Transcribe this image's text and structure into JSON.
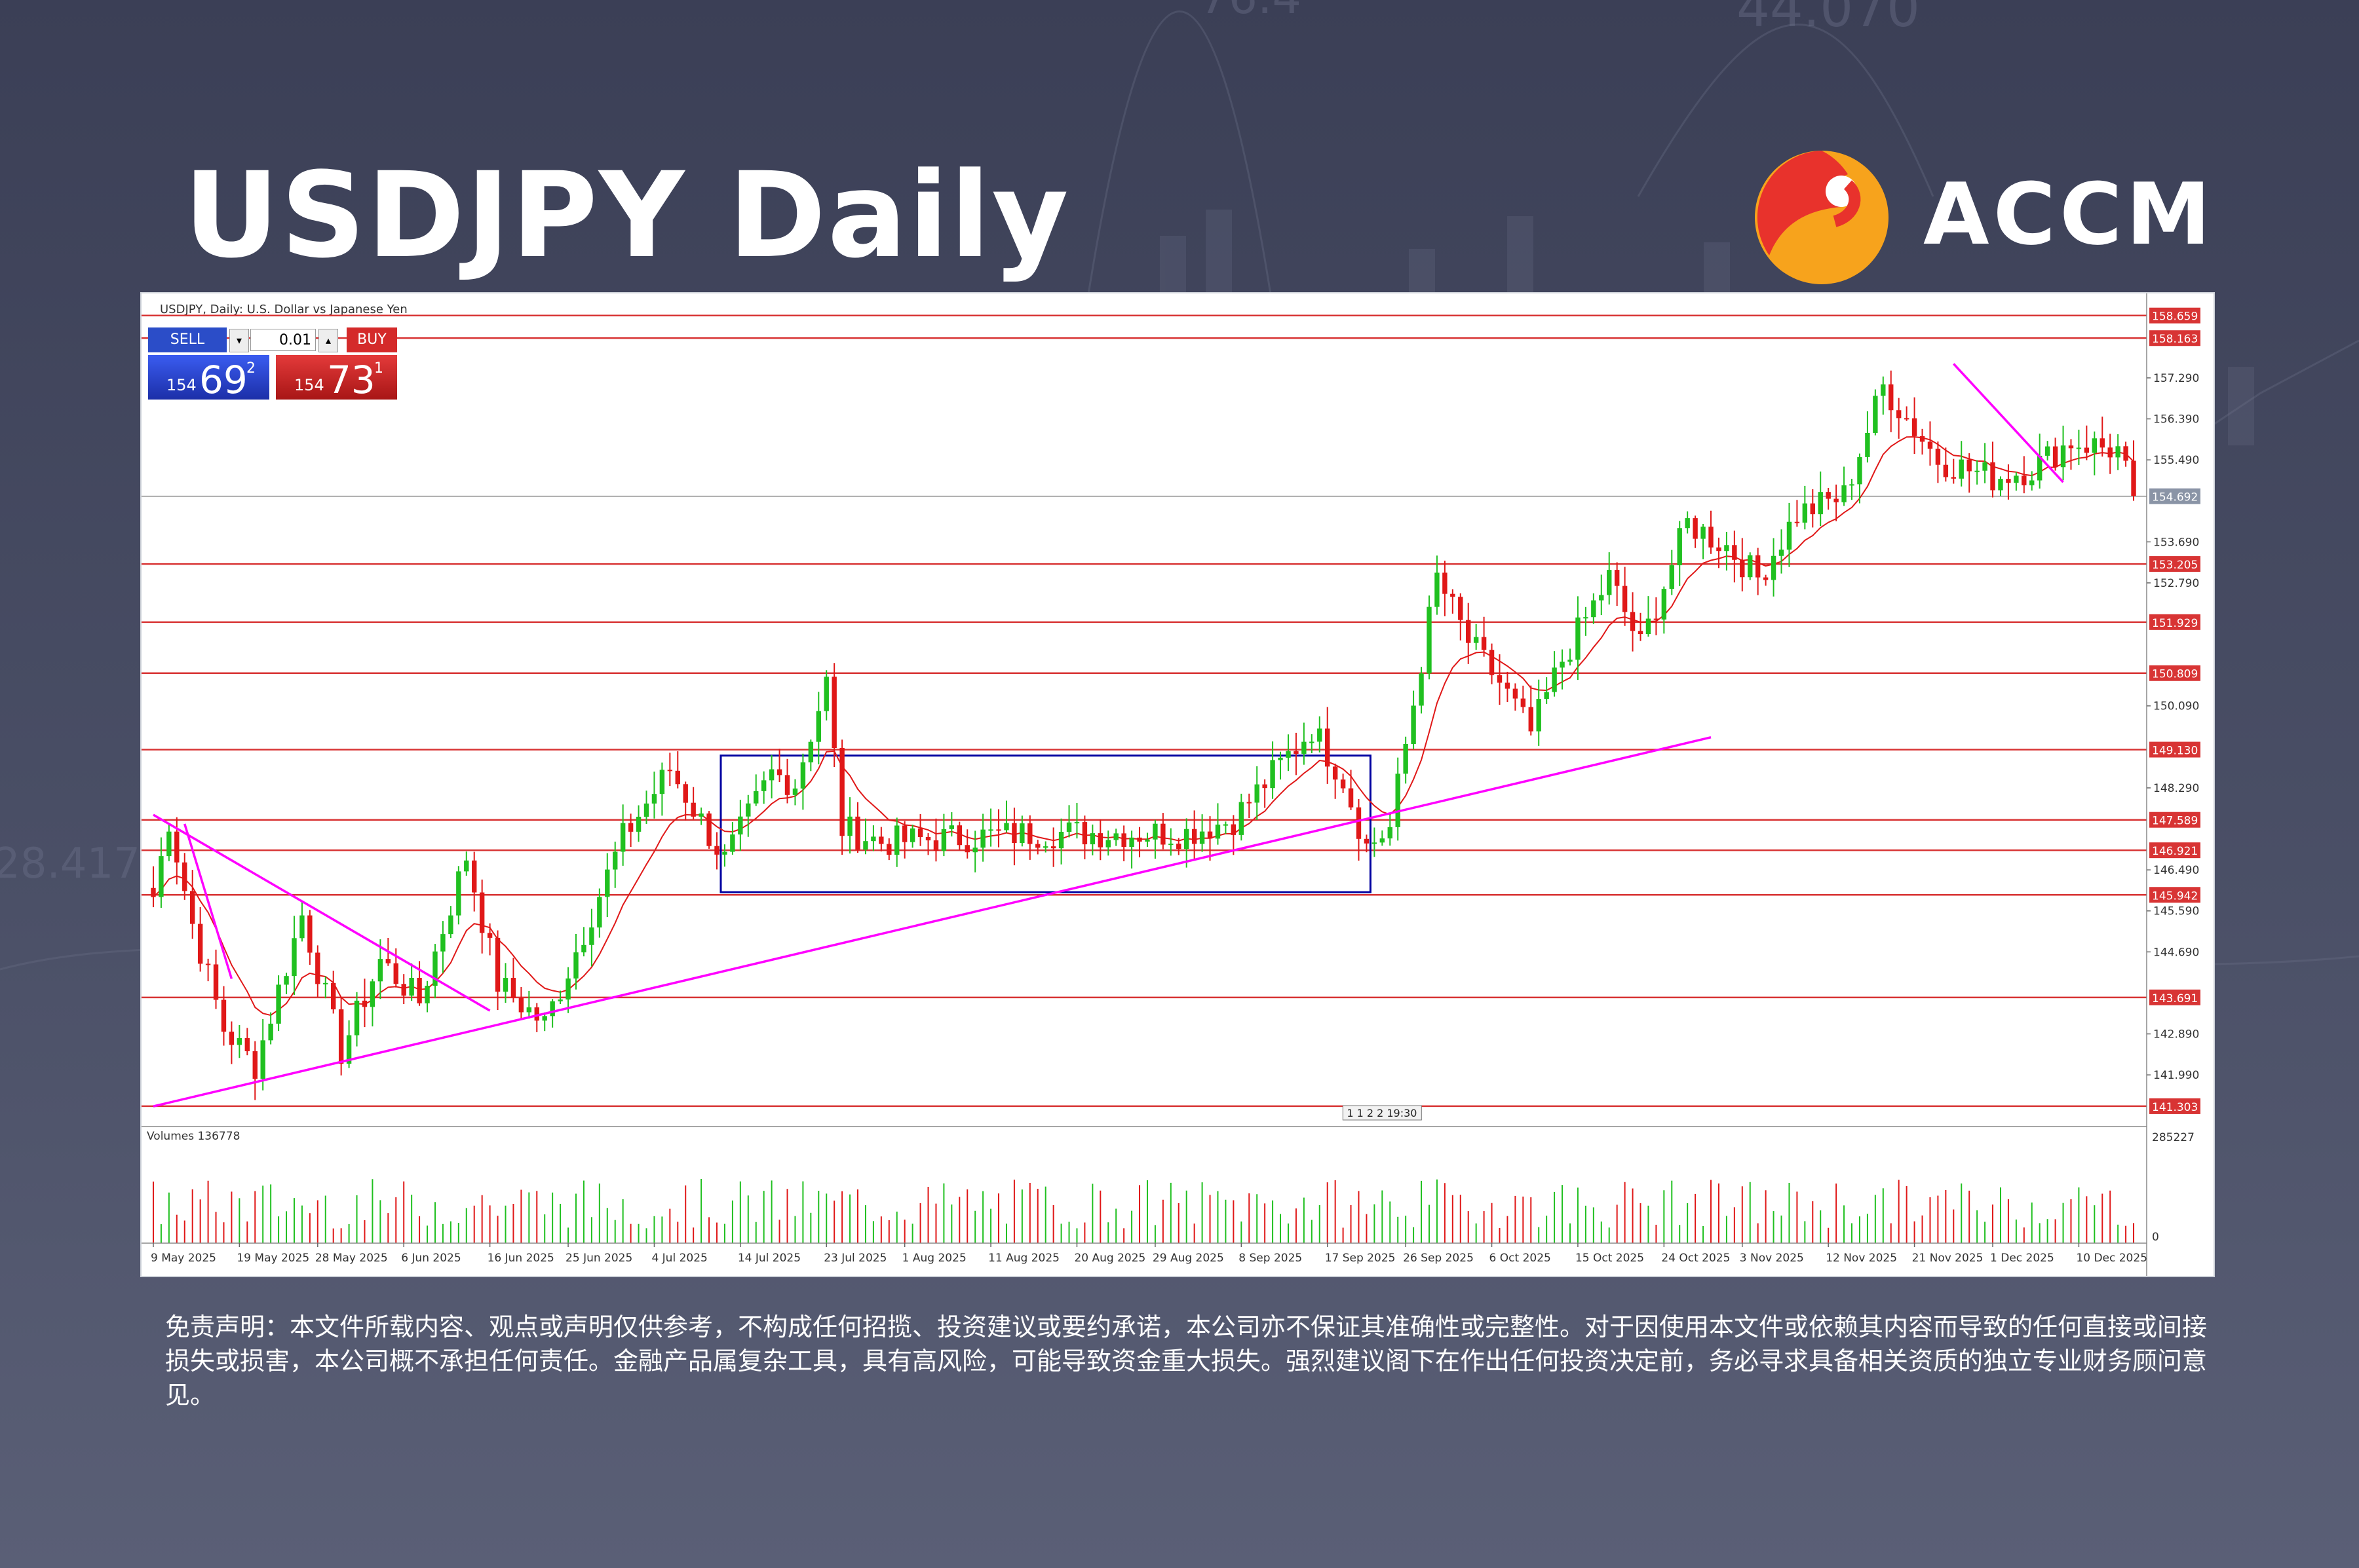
{
  "title": "USDJPY Daily",
  "brand": {
    "name": "ACCM",
    "logo_colors": [
      "#e8322c",
      "#f7a31c"
    ]
  },
  "background_numbers": [
    "76.4",
    "44.070",
    "28.417"
  ],
  "trade_panel": {
    "sell_label": "SELL",
    "buy_label": "BUY",
    "lot": "0.01",
    "sell_small": "154",
    "sell_big": "69",
    "sell_sup": "2",
    "buy_small": "154",
    "buy_big": "73",
    "buy_sup": "1"
  },
  "chart_data": {
    "type": "candlestick",
    "header": "USDJPY, Daily: U.S. Dollar vs Japanese Yen",
    "volume_label": "Volumes 136778",
    "volume_axis": [
      "285227",
      "0"
    ],
    "date_marker": "1 1 2 2 19:30",
    "ylim": [
      141.0,
      159.0
    ],
    "price_axis_ticks": [
      157.29,
      156.39,
      155.49,
      153.69,
      152.79,
      150.09,
      148.29,
      146.49,
      145.59,
      144.69,
      142.89,
      141.99
    ],
    "horizontal_levels": [
      158.659,
      158.163,
      153.205,
      151.929,
      150.809,
      149.13,
      147.589,
      146.921,
      145.942,
      143.691,
      141.303
    ],
    "current_price": 154.692,
    "x_labels": [
      "9 May 2025",
      "19 May 2025",
      "28 May 2025",
      "6 Jun 2025",
      "16 Jun 2025",
      "25 Jun 2025",
      "4 Jul 2025",
      "14 Jul 2025",
      "23 Jul 2025",
      "1 Aug 2025",
      "11 Aug 2025",
      "20 Aug 2025",
      "29 Aug 2025",
      "8 Sep 2025",
      "17 Sep 2025",
      "26 Sep 2025",
      "6 Oct 2025",
      "15 Oct 2025",
      "24 Oct 2025",
      "3 Nov 2025",
      "12 Nov 2025",
      "21 Nov 2025",
      "1 Dec 2025",
      "10 Dec 2025"
    ],
    "anchors": [
      [
        0,
        145.9
      ],
      [
        2,
        147.6
      ],
      [
        5,
        145.3
      ],
      [
        9,
        143.0
      ],
      [
        13,
        142.2
      ],
      [
        19,
        145.5
      ],
      [
        24,
        142.5
      ],
      [
        29,
        144.5
      ],
      [
        34,
        143.6
      ],
      [
        40,
        146.8
      ],
      [
        44,
        144.0
      ],
      [
        50,
        143.1
      ],
      [
        53,
        144.3
      ],
      [
        60,
        147.2
      ],
      [
        66,
        148.7
      ],
      [
        73,
        146.7
      ],
      [
        79,
        148.6
      ],
      [
        82,
        148.4
      ],
      [
        86,
        150.6
      ],
      [
        88,
        147.4
      ],
      [
        93,
        147.1
      ],
      [
        113,
        147.3
      ],
      [
        132,
        147.3
      ],
      [
        138,
        147.6
      ],
      [
        148,
        149.6
      ],
      [
        152,
        148.5
      ],
      [
        155,
        147.0
      ],
      [
        158,
        147.4
      ],
      [
        164,
        152.9
      ],
      [
        168,
        151.5
      ],
      [
        172,
        150.6
      ],
      [
        176,
        149.5
      ],
      [
        180,
        151.1
      ],
      [
        186,
        152.9
      ],
      [
        190,
        151.4
      ],
      [
        196,
        154.1
      ],
      [
        201,
        153.6
      ],
      [
        205,
        152.9
      ],
      [
        210,
        154.3
      ],
      [
        216,
        154.7
      ],
      [
        221,
        157.1
      ],
      [
        228,
        155.5
      ],
      [
        235,
        155.1
      ],
      [
        240,
        155.3
      ],
      [
        245,
        155.9
      ],
      [
        251,
        155.7
      ],
      [
        253,
        154.7
      ]
    ],
    "volume_range": [
      40000,
      285227
    ],
    "ema_period": 10,
    "trendlines": [
      {
        "from": [
          0,
          147.7
        ],
        "to": [
          43,
          143.4
        ]
      },
      {
        "from": [
          4,
          147.5
        ],
        "to": [
          10,
          144.1
        ]
      },
      {
        "from": [
          0,
          141.3
        ],
        "to": [
          199,
          149.4
        ]
      },
      {
        "from": [
          230,
          157.6
        ],
        "to": [
          244,
          155.0
        ]
      }
    ],
    "range_box": {
      "from_bar": 73,
      "to_bar": 155,
      "top": 149.0,
      "bottom": 146.0
    },
    "colors": {
      "up": "#20c020",
      "down": "#e01818",
      "level": "#d83434",
      "trend": "#ff00ff",
      "box": "#0000a0",
      "ma": "#e01818"
    }
  },
  "disclaimer": "免责声明：本文件所载内容、观点或声明仅供参考，不构成任何招揽、投资建议或要约承诺，本公司亦不保证其准确性或完整性。对于因使用本文件或依赖其内容而导致的任何直接或间接损失或损害，本公司概不承担任何责任。金融产品属复杂工具，具有高风险，可能导致资金重大损失。强烈建议阁下在作出任何投资决定前，务必寻求具备相关资质的独立专业财务顾问意见。"
}
